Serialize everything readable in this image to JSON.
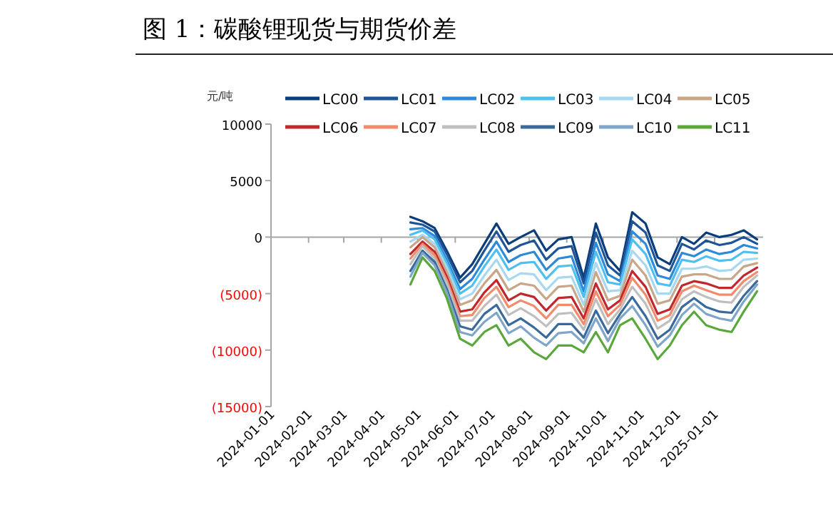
{
  "chart_data": {
    "type": "line",
    "title": "图 1：碳酸锂现货与期货价差",
    "ylabel": "元/吨",
    "x": [
      "2024-04-25",
      "2024-05-05",
      "2024-05-15",
      "2024-05-25",
      "2024-06-05",
      "2024-06-15",
      "2024-06-25",
      "2024-07-05",
      "2024-07-15",
      "2024-07-25",
      "2024-08-05",
      "2024-08-15",
      "2024-08-25",
      "2024-09-05",
      "2024-09-15",
      "2024-09-25",
      "2024-10-05",
      "2024-10-15",
      "2024-10-25",
      "2024-11-05",
      "2024-11-15",
      "2024-11-25",
      "2024-12-05",
      "2024-12-15",
      "2024-12-25",
      "2025-01-05",
      "2025-01-15",
      "2025-01-25",
      "2025-02-05"
    ],
    "xlim": [
      "2024-01-01",
      "2025-02-10"
    ],
    "xticks": [
      "2024-01-01",
      "2024-02-01",
      "2024-03-01",
      "2024-04-01",
      "2024-05-01",
      "2024-06-01",
      "2024-07-01",
      "2024-08-01",
      "2024-09-01",
      "2024-10-01",
      "2024-11-01",
      "2024-12-01",
      "2025-01-01"
    ],
    "ylim": [
      -15000,
      10000
    ],
    "yticks": [
      {
        "value": -15000,
        "label": "(15000)"
      },
      {
        "value": -10000,
        "label": "(10000)"
      },
      {
        "value": -5000,
        "label": "(5000)"
      },
      0,
      5000,
      10000
    ],
    "legend": "top",
    "line_style": "solid",
    "series": [
      {
        "name": "LC00",
        "color": "#0b3d7a",
        "values": [
          1800,
          1400,
          800,
          -1200,
          -3600,
          -2400,
          -600,
          1200,
          -600,
          0,
          600,
          -1200,
          -200,
          0,
          -3600,
          1200,
          -1800,
          -3000,
          2200,
          1200,
          -1800,
          -2400,
          0,
          -600,
          400,
          0,
          200,
          600,
          -200
        ]
      },
      {
        "name": "LC01",
        "color": "#1f5596",
        "values": [
          1300,
          1100,
          500,
          -1500,
          -4000,
          -3000,
          -1200,
          500,
          -1300,
          -700,
          -300,
          -2000,
          -1000,
          -800,
          -4100,
          400,
          -2500,
          -3400,
          1400,
          400,
          -2500,
          -3000,
          -600,
          -1100,
          -300,
          -700,
          -500,
          0,
          -600
        ]
      },
      {
        "name": "LC02",
        "color": "#2e8ad8",
        "values": [
          700,
          800,
          100,
          -2000,
          -4600,
          -3700,
          -2000,
          -400,
          -2200,
          -1600,
          -1300,
          -2900,
          -1900,
          -1700,
          -4800,
          -500,
          -3300,
          -3900,
          500,
          -600,
          -3400,
          -3700,
          -1400,
          -1700,
          -1100,
          -1500,
          -1300,
          -700,
          -1000
        ]
      },
      {
        "name": "LC03",
        "color": "#4fbfef",
        "values": [
          200,
          600,
          -200,
          -2300,
          -5000,
          -4300,
          -2600,
          -1100,
          -2900,
          -2300,
          -2200,
          -3700,
          -2600,
          -2500,
          -5300,
          -1300,
          -4000,
          -4200,
          -200,
          -1500,
          -4100,
          -4300,
          -2000,
          -2200,
          -1700,
          -2100,
          -2000,
          -1300,
          -1400
        ]
      },
      {
        "name": "LC04",
        "color": "#a8d8f0",
        "values": [
          -400,
          200,
          -600,
          -2700,
          -5500,
          -5000,
          -3400,
          -2000,
          -3800,
          -3200,
          -3300,
          -4700,
          -3600,
          -3500,
          -6000,
          -2300,
          -4800,
          -4700,
          -1200,
          -2500,
          -5000,
          -5000,
          -2800,
          -2800,
          -2600,
          -3000,
          -2900,
          -2000,
          -1900
        ]
      },
      {
        "name": "LC05",
        "color": "#c9a688",
        "values": [
          -900,
          0,
          -900,
          -3100,
          -6000,
          -5600,
          -4100,
          -2900,
          -4700,
          -4100,
          -4300,
          -5500,
          -4400,
          -4300,
          -6600,
          -3100,
          -5600,
          -5200,
          -2000,
          -3400,
          -5900,
          -5600,
          -3500,
          -3300,
          -3300,
          -3700,
          -3700,
          -2600,
          -2300
        ]
      },
      {
        "name": "LC06",
        "color": "#c0282d",
        "values": [
          -1500,
          -400,
          -1300,
          -3500,
          -6600,
          -6400,
          -4900,
          -3800,
          -5600,
          -5000,
          -5300,
          -6500,
          -5400,
          -5300,
          -7200,
          -4100,
          -6400,
          -5600,
          -3000,
          -4400,
          -6800,
          -6400,
          -4300,
          -3900,
          -4100,
          -4500,
          -4500,
          -3400,
          -2700
        ]
      },
      {
        "name": "LC07",
        "color": "#f08c6c",
        "values": [
          -1900,
          -600,
          -1600,
          -3800,
          -7000,
          -6900,
          -5400,
          -4400,
          -6200,
          -5600,
          -6100,
          -7200,
          -6000,
          -6000,
          -7700,
          -4800,
          -7000,
          -6000,
          -3600,
          -5100,
          -7400,
          -6900,
          -4800,
          -4300,
          -4700,
          -5100,
          -5100,
          -3900,
          -3100
        ]
      },
      {
        "name": "LC08",
        "color": "#bfbfbf",
        "values": [
          -2400,
          -800,
          -1900,
          -4100,
          -7400,
          -7400,
          -6100,
          -5100,
          -6900,
          -6300,
          -7000,
          -7900,
          -6800,
          -6700,
          -8200,
          -5500,
          -7700,
          -6400,
          -4400,
          -5900,
          -8100,
          -7400,
          -5500,
          -4800,
          -5300,
          -5700,
          -5800,
          -4400,
          -3400
        ]
      },
      {
        "name": "LC09",
        "color": "#3a6a9c",
        "values": [
          -3000,
          -1200,
          -2200,
          -4600,
          -7900,
          -8200,
          -6800,
          -6000,
          -7800,
          -7200,
          -8000,
          -8900,
          -7700,
          -7700,
          -8900,
          -6500,
          -8500,
          -6800,
          -5300,
          -7000,
          -9000,
          -8200,
          -6200,
          -5400,
          -6200,
          -6600,
          -6700,
          -5200,
          -3900
        ]
      },
      {
        "name": "LC10",
        "color": "#7fa6c8",
        "values": [
          -3500,
          -1400,
          -2500,
          -4900,
          -8400,
          -8700,
          -7500,
          -6700,
          -8500,
          -7900,
          -8900,
          -9600,
          -8500,
          -8400,
          -9400,
          -7200,
          -9200,
          -7200,
          -6100,
          -7800,
          -9700,
          -8700,
          -6900,
          -5900,
          -6800,
          -7200,
          -7400,
          -5700,
          -4200
        ]
      },
      {
        "name": "LC11",
        "color": "#5aa83c",
        "values": [
          -4200,
          -1800,
          -3000,
          -5400,
          -9000,
          -9600,
          -8400,
          -7800,
          -9600,
          -9000,
          -10200,
          -10800,
          -9600,
          -9600,
          -10200,
          -8400,
          -10200,
          -7800,
          -7200,
          -9000,
          -10800,
          -9600,
          -7800,
          -6600,
          -7800,
          -8200,
          -8400,
          -6600,
          -4800
        ]
      }
    ]
  }
}
